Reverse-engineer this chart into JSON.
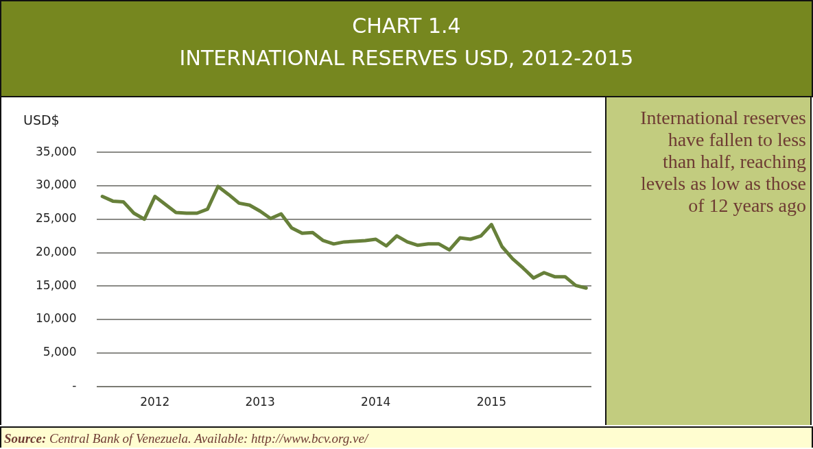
{
  "chart_data": {
    "type": "line",
    "title": "CHART 1.4",
    "subtitle": "INTERNATIONAL RESERVES USD, 2012-2015",
    "ylabel": "USD$",
    "annotations": [
      "International reserves have fallen to less than half, reaching levels as low as those of 12 years ago",
      "Source: Central Bank of Venezuela. Available: http://www.bcv.org.ve/"
    ],
    "categories": [
      null,
      null,
      null,
      null,
      null,
      "2012",
      null,
      null,
      null,
      null,
      null,
      null,
      null,
      null,
      null,
      "2013",
      null,
      null,
      null,
      null,
      null,
      null,
      null,
      null,
      null,
      null,
      "2014",
      null,
      null,
      null,
      null,
      null,
      null,
      null,
      null,
      null,
      null,
      "2015",
      null,
      null,
      null,
      null,
      null,
      null,
      null,
      null,
      null
    ],
    "series": [
      {
        "color": "#67803a",
        "values": [
          28400,
          27700,
          27600,
          25900,
          25000,
          28400,
          27200,
          26000,
          25900,
          25900,
          26500,
          29900,
          28700,
          27400,
          27100,
          26200,
          25100,
          25800,
          23700,
          22900,
          23000,
          21800,
          21300,
          21600,
          21700,
          21800,
          22000,
          21000,
          22500,
          21600,
          21100,
          21300,
          21300,
          20400,
          22200,
          22000,
          22500,
          24200,
          20900,
          19100,
          17700,
          16200,
          17000,
          16400,
          16400,
          15100,
          14700
        ]
      }
    ],
    "ylim": [
      0,
      35000
    ],
    "yticks": [
      {
        "value": 0,
        "label": "-"
      },
      {
        "value": 5000,
        "label": "5,000"
      },
      {
        "value": 10000,
        "label": "10,000"
      },
      {
        "value": 15000,
        "label": "15,000"
      },
      {
        "value": 20000,
        "label": "20,000"
      },
      {
        "value": 25000,
        "label": "25,000"
      },
      {
        "value": 30000,
        "label": "30,000"
      },
      {
        "value": 35000,
        "label": "35,000"
      }
    ],
    "grid": "y",
    "legend": false,
    "marker": "none",
    "line_style": "solid"
  }
}
